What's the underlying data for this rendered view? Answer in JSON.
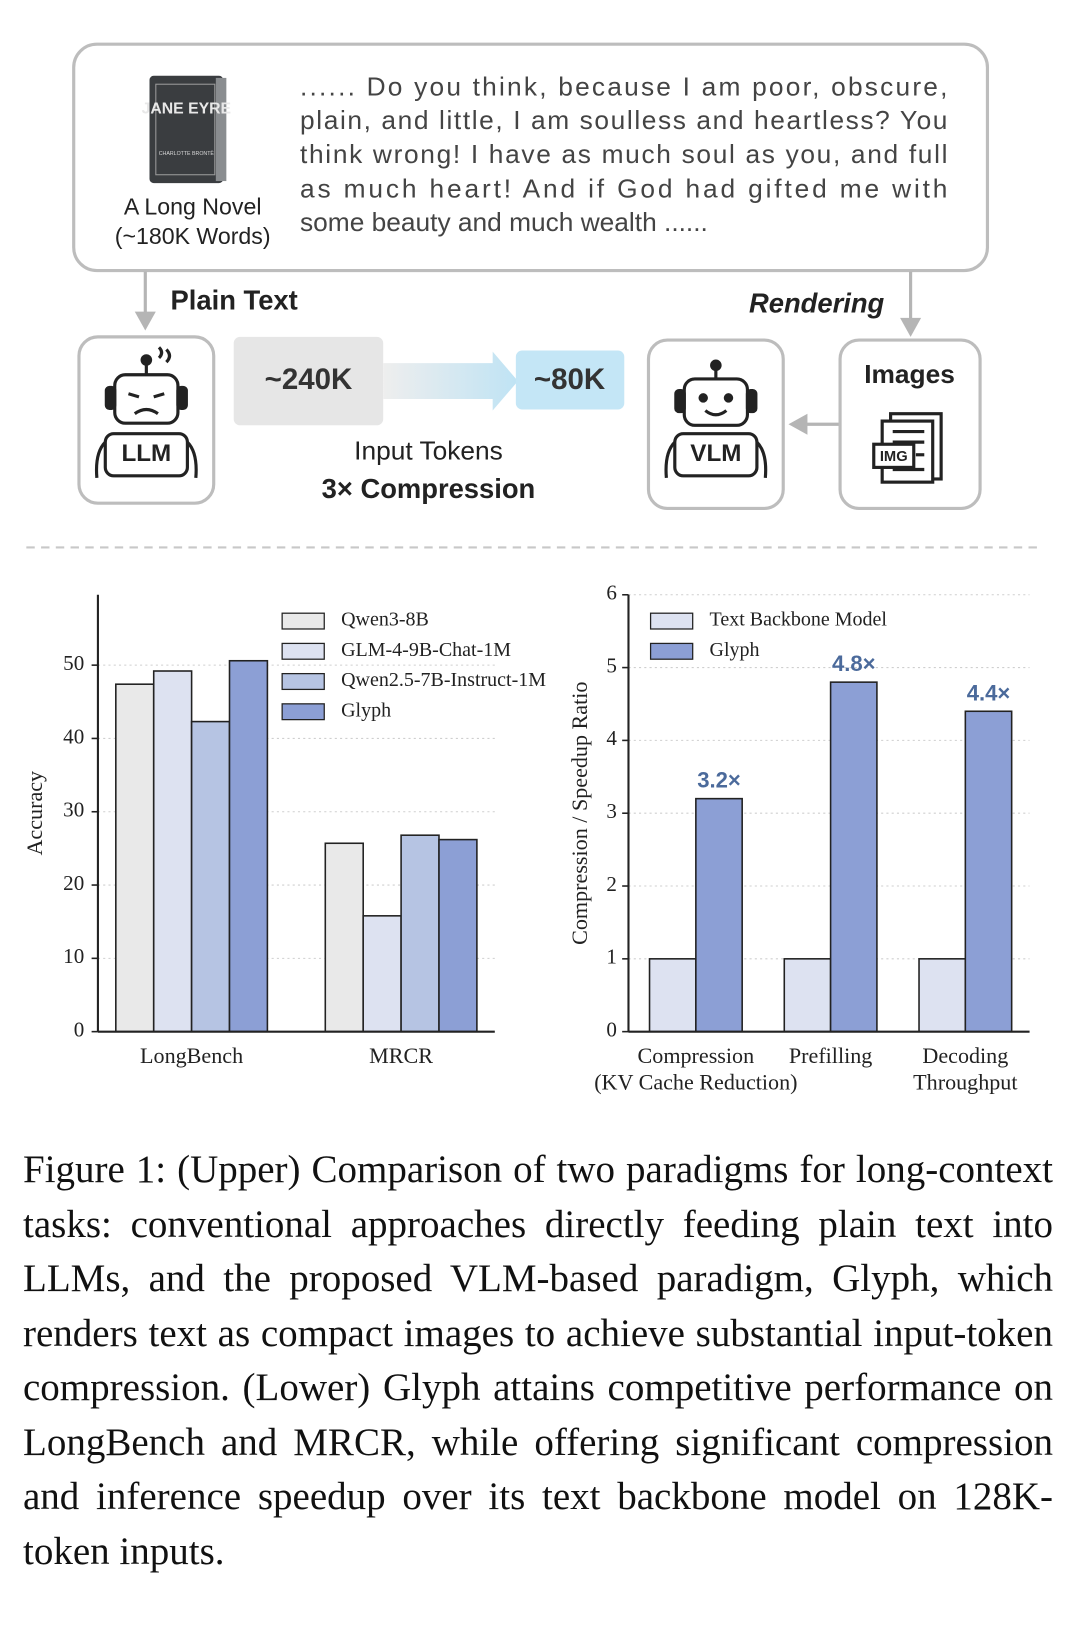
{
  "diagram": {
    "book_title": "JANE EYRE",
    "book_author": "CHARLOTTE BRONTË",
    "novel_label": "A Long Novel",
    "novel_words": "(~180K Words)",
    "quote_lines": [
      "...... Do you think, because I am poor, obscure,",
      "plain, and little, I am soulless and heartless? You",
      "think wrong! I have as much soul as you, and full",
      "as much heart! And if God had gifted me with",
      "some beauty and much wealth ......"
    ],
    "plain_text": "Plain Text",
    "rendering": "Rendering",
    "llm": "LLM",
    "vlm": "VLM",
    "tokens_before": "~240K",
    "tokens_after": "~80K",
    "input_tokens": "Input Tokens",
    "compression": "3× Compression",
    "images": "Images",
    "img": "IMG"
  },
  "chart_data": [
    {
      "type": "bar",
      "ylabel": "Accuracy",
      "categories": [
        "LongBench",
        "MRCR"
      ],
      "series": [
        {
          "name": "Qwen3-8B",
          "color": "#e9e9e9",
          "values": [
            47.4,
            25.7
          ]
        },
        {
          "name": "GLM-4-9B-Chat-1M",
          "color": "#dde2f1",
          "values": [
            49.2,
            15.8
          ]
        },
        {
          "name": "Qwen2.5-7B-Instruct-1M",
          "color": "#b6c4e3",
          "values": [
            42.3,
            26.8
          ]
        },
        {
          "name": "Glyph",
          "color": "#8c9fd5",
          "values": [
            50.6,
            26.2
          ]
        }
      ],
      "ylim": [
        0,
        59.6
      ],
      "yticks": [
        0,
        10,
        20,
        30,
        40,
        50
      ],
      "grid": true,
      "legend": "upper right"
    },
    {
      "type": "bar",
      "ylabel": "Compression / Speedup Ratio",
      "categories": [
        "Compression\n(KV Cache Reduction)",
        "Prefilling",
        "Decoding\nThroughput"
      ],
      "series": [
        {
          "name": "Text Backbone Model",
          "color": "#dde2f1",
          "values": [
            1,
            1,
            1
          ]
        },
        {
          "name": "Glyph",
          "color": "#8c9fd5",
          "values": [
            3.2,
            4.8,
            4.4
          ],
          "value_labels": [
            "3.2×",
            "4.8×",
            "4.4×"
          ]
        }
      ],
      "ylim": [
        0,
        6
      ],
      "yticks": [
        0,
        1,
        2,
        3,
        4,
        5,
        6
      ],
      "grid": true,
      "legend": "upper left"
    }
  ],
  "caption": "Figure 1: (Upper) Comparison of two paradigms for long-context tasks: conventional approaches directly feeding plain text into LLMs, and the proposed VLM-based paradigm, Glyph, which renders text as compact images to achieve substantial input-token compression. (Lower) Glyph attains competitive performance on LongBench and MRCR, while offering significant compression and inference speedup over its text backbone model on 128K-token inputs."
}
